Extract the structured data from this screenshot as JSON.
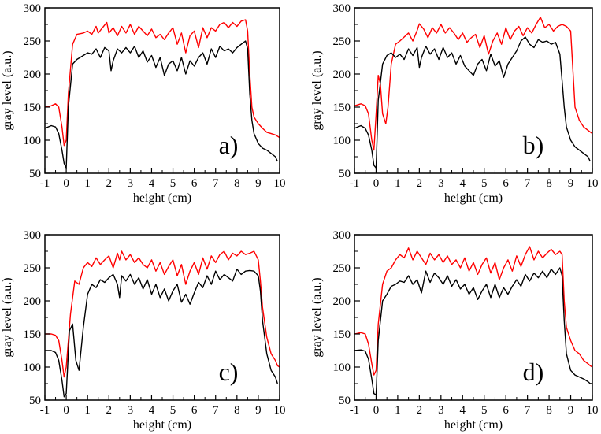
{
  "figure": {
    "colors": {
      "series_red": "#ff0000",
      "series_black": "#000000",
      "axis": "#000000"
    }
  },
  "chart_data": [
    {
      "type": "line",
      "panel_label": "a)",
      "xlabel": "height (cm)",
      "ylabel": "gray level (a.u.)",
      "xlim": [
        -1,
        10
      ],
      "ylim": [
        50,
        300
      ],
      "xticks": [
        "-1",
        "0",
        "1",
        "2",
        "3",
        "4",
        "5",
        "6",
        "7",
        "8",
        "9",
        "10"
      ],
      "yticks": [
        "50",
        "100",
        "150",
        "200",
        "250",
        "300"
      ],
      "series": [
        {
          "name": "red",
          "color": "#ff0000",
          "x": [
            -1,
            -0.7,
            -0.5,
            -0.35,
            -0.2,
            -0.1,
            0.0,
            0.1,
            0.3,
            0.5,
            0.8,
            1.0,
            1.2,
            1.4,
            1.5,
            1.7,
            1.9,
            2.0,
            2.2,
            2.4,
            2.6,
            2.8,
            3.0,
            3.2,
            3.4,
            3.6,
            3.8,
            4.0,
            4.2,
            4.4,
            4.6,
            4.8,
            5.0,
            5.2,
            5.4,
            5.6,
            5.8,
            6.0,
            6.2,
            6.4,
            6.6,
            6.8,
            7.0,
            7.2,
            7.4,
            7.6,
            7.8,
            8.0,
            8.2,
            8.4,
            8.5,
            8.6,
            8.7,
            8.8,
            9.0,
            9.2,
            9.4,
            9.6,
            9.8,
            10.0
          ],
          "y": [
            150,
            152,
            155,
            150,
            120,
            92,
            100,
            170,
            245,
            260,
            262,
            265,
            260,
            272,
            262,
            270,
            278,
            262,
            270,
            258,
            272,
            262,
            275,
            260,
            272,
            265,
            258,
            268,
            255,
            260,
            252,
            262,
            270,
            245,
            262,
            232,
            258,
            265,
            240,
            270,
            255,
            270,
            265,
            275,
            278,
            270,
            278,
            272,
            280,
            282,
            265,
            200,
            150,
            135,
            125,
            118,
            112,
            110,
            108,
            104
          ]
        },
        {
          "name": "black",
          "color": "#000000",
          "x": [
            -1,
            -0.7,
            -0.5,
            -0.35,
            -0.2,
            -0.1,
            0.0,
            0.1,
            0.3,
            0.5,
            0.8,
            1.0,
            1.2,
            1.4,
            1.6,
            1.8,
            2.0,
            2.1,
            2.2,
            2.4,
            2.6,
            2.8,
            3.0,
            3.2,
            3.4,
            3.6,
            3.8,
            4.0,
            4.2,
            4.4,
            4.6,
            4.8,
            5.0,
            5.2,
            5.4,
            5.6,
            5.8,
            6.0,
            6.2,
            6.4,
            6.6,
            6.8,
            7.0,
            7.2,
            7.4,
            7.6,
            7.8,
            8.0,
            8.2,
            8.4,
            8.5,
            8.6,
            8.7,
            8.8,
            9.0,
            9.2,
            9.4,
            9.6,
            9.8,
            9.9
          ],
          "y": [
            118,
            122,
            120,
            110,
            85,
            65,
            58,
            150,
            215,
            222,
            228,
            232,
            230,
            238,
            225,
            240,
            235,
            205,
            220,
            238,
            232,
            240,
            232,
            242,
            225,
            235,
            218,
            228,
            210,
            225,
            198,
            215,
            220,
            205,
            225,
            200,
            220,
            212,
            225,
            232,
            215,
            238,
            225,
            242,
            235,
            238,
            232,
            240,
            245,
            250,
            238,
            170,
            130,
            110,
            95,
            88,
            85,
            80,
            75,
            68
          ]
        }
      ]
    },
    {
      "type": "line",
      "panel_label": "b)",
      "xlabel": "height (cm)",
      "ylabel": "gray level (a.u.)",
      "xlim": [
        -1,
        10
      ],
      "ylim": [
        50,
        300
      ],
      "xticks": [
        "-1",
        "0",
        "1",
        "2",
        "3",
        "4",
        "5",
        "6",
        "7",
        "8",
        "9",
        "10"
      ],
      "yticks": [
        "50",
        "100",
        "150",
        "200",
        "250",
        "300"
      ],
      "series": [
        {
          "name": "red",
          "color": "#ff0000",
          "x": [
            -1,
            -0.7,
            -0.5,
            -0.35,
            -0.2,
            -0.1,
            0.0,
            0.1,
            0.2,
            0.3,
            0.45,
            0.55,
            0.7,
            0.9,
            1.1,
            1.3,
            1.5,
            1.7,
            1.9,
            2.0,
            2.2,
            2.4,
            2.6,
            2.8,
            3.0,
            3.2,
            3.4,
            3.6,
            3.8,
            4.0,
            4.2,
            4.4,
            4.6,
            4.8,
            5.0,
            5.2,
            5.4,
            5.6,
            5.8,
            6.0,
            6.2,
            6.4,
            6.6,
            6.8,
            7.0,
            7.2,
            7.4,
            7.6,
            7.8,
            8.0,
            8.2,
            8.4,
            8.6,
            8.8,
            9.0,
            9.2,
            9.4,
            9.6,
            9.8,
            10.0
          ],
          "y": [
            152,
            155,
            152,
            140,
            100,
            85,
            140,
            198,
            185,
            140,
            125,
            150,
            215,
            245,
            250,
            256,
            262,
            250,
            266,
            276,
            268,
            255,
            270,
            262,
            275,
            262,
            270,
            262,
            252,
            262,
            248,
            255,
            260,
            240,
            258,
            230,
            250,
            262,
            245,
            270,
            252,
            265,
            272,
            258,
            270,
            262,
            275,
            286,
            270,
            275,
            265,
            272,
            275,
            272,
            265,
            150,
            130,
            120,
            115,
            110
          ]
        },
        {
          "name": "black",
          "color": "#000000",
          "x": [
            -1,
            -0.7,
            -0.5,
            -0.35,
            -0.2,
            -0.1,
            0.0,
            0.1,
            0.3,
            0.5,
            0.7,
            0.9,
            1.1,
            1.3,
            1.5,
            1.7,
            1.9,
            2.0,
            2.1,
            2.3,
            2.5,
            2.7,
            2.9,
            3.1,
            3.3,
            3.5,
            3.7,
            3.9,
            4.1,
            4.3,
            4.5,
            4.7,
            4.9,
            5.1,
            5.3,
            5.5,
            5.7,
            5.9,
            6.1,
            6.3,
            6.5,
            6.7,
            6.9,
            7.1,
            7.3,
            7.5,
            7.7,
            7.9,
            8.1,
            8.3,
            8.5,
            8.6,
            8.7,
            8.8,
            9.0,
            9.2,
            9.4,
            9.6,
            9.8,
            9.9
          ],
          "y": [
            118,
            122,
            118,
            108,
            85,
            62,
            58,
            160,
            215,
            228,
            232,
            225,
            230,
            222,
            238,
            228,
            240,
            210,
            225,
            242,
            230,
            238,
            222,
            240,
            225,
            232,
            215,
            228,
            212,
            205,
            198,
            215,
            222,
            205,
            230,
            212,
            220,
            195,
            215,
            225,
            235,
            250,
            256,
            245,
            240,
            252,
            248,
            250,
            245,
            248,
            230,
            190,
            150,
            120,
            100,
            90,
            85,
            80,
            75,
            68
          ]
        }
      ]
    },
    {
      "type": "line",
      "panel_label": "c)",
      "xlabel": "height (cm)",
      "ylabel": "gray level (a.u.)",
      "xlim": [
        -1,
        10
      ],
      "ylim": [
        50,
        300
      ],
      "xticks": [
        "-1",
        "0",
        "1",
        "2",
        "3",
        "4",
        "5",
        "6",
        "7",
        "8",
        "9",
        "10"
      ],
      "yticks": [
        "50",
        "100",
        "150",
        "200",
        "250",
        "300"
      ],
      "series": [
        {
          "name": "red",
          "color": "#ff0000",
          "x": [
            -1,
            -0.7,
            -0.5,
            -0.35,
            -0.2,
            -0.1,
            0.0,
            0.2,
            0.4,
            0.6,
            0.8,
            1.0,
            1.2,
            1.4,
            1.6,
            1.8,
            2.0,
            2.2,
            2.4,
            2.5,
            2.6,
            2.8,
            3.0,
            3.2,
            3.4,
            3.6,
            3.8,
            4.0,
            4.2,
            4.4,
            4.6,
            4.8,
            5.0,
            5.2,
            5.4,
            5.6,
            5.8,
            6.0,
            6.2,
            6.4,
            6.6,
            6.8,
            7.0,
            7.2,
            7.4,
            7.6,
            7.8,
            8.0,
            8.2,
            8.4,
            8.6,
            8.8,
            9.0,
            9.1,
            9.2,
            9.4,
            9.6,
            9.8,
            9.9,
            10.0
          ],
          "y": [
            150,
            150,
            148,
            140,
            110,
            85,
            100,
            180,
            230,
            225,
            250,
            258,
            252,
            265,
            255,
            262,
            268,
            250,
            272,
            262,
            275,
            262,
            270,
            258,
            265,
            255,
            250,
            262,
            245,
            258,
            240,
            252,
            262,
            238,
            255,
            225,
            245,
            258,
            240,
            265,
            248,
            268,
            258,
            270,
            275,
            262,
            272,
            268,
            275,
            270,
            272,
            275,
            262,
            230,
            190,
            145,
            120,
            110,
            102,
            100
          ]
        },
        {
          "name": "black",
          "color": "#000000",
          "x": [
            -1,
            -0.7,
            -0.5,
            -0.35,
            -0.2,
            -0.1,
            0.0,
            0.15,
            0.3,
            0.45,
            0.6,
            0.8,
            1.0,
            1.2,
            1.4,
            1.6,
            1.8,
            2.0,
            2.2,
            2.4,
            2.5,
            2.6,
            2.8,
            3.0,
            3.2,
            3.4,
            3.6,
            3.8,
            4.0,
            4.2,
            4.4,
            4.6,
            4.8,
            5.0,
            5.2,
            5.4,
            5.6,
            5.8,
            6.0,
            6.2,
            6.4,
            6.6,
            6.8,
            7.0,
            7.2,
            7.4,
            7.6,
            7.8,
            8.0,
            8.2,
            8.4,
            8.6,
            8.8,
            9.0,
            9.1,
            9.2,
            9.4,
            9.6,
            9.8,
            9.9
          ],
          "y": [
            125,
            125,
            122,
            110,
            80,
            55,
            60,
            155,
            165,
            110,
            95,
            160,
            210,
            225,
            220,
            232,
            228,
            235,
            240,
            225,
            205,
            238,
            230,
            240,
            225,
            235,
            218,
            232,
            210,
            225,
            205,
            218,
            200,
            215,
            225,
            198,
            210,
            195,
            212,
            228,
            220,
            238,
            225,
            245,
            232,
            240,
            235,
            230,
            248,
            240,
            245,
            246,
            245,
            238,
            215,
            170,
            120,
            95,
            85,
            75
          ]
        }
      ]
    },
    {
      "type": "line",
      "panel_label": "d)",
      "xlabel": "height (cm)",
      "ylabel": "gray level (a.u.)",
      "xlim": [
        -1,
        10
      ],
      "ylim": [
        50,
        300
      ],
      "xticks": [
        "-1",
        "0",
        "1",
        "2",
        "3",
        "4",
        "5",
        "6",
        "7",
        "8",
        "9",
        "10"
      ],
      "yticks": [
        "50",
        "100",
        "150",
        "200",
        "250",
        "300"
      ],
      "series": [
        {
          "name": "red",
          "color": "#ff0000",
          "x": [
            -1,
            -0.7,
            -0.5,
            -0.35,
            -0.2,
            -0.1,
            0.0,
            0.1,
            0.3,
            0.5,
            0.7,
            0.9,
            1.1,
            1.3,
            1.5,
            1.7,
            1.9,
            2.1,
            2.3,
            2.5,
            2.7,
            2.9,
            3.1,
            3.3,
            3.5,
            3.7,
            3.9,
            4.1,
            4.3,
            4.5,
            4.7,
            4.9,
            5.1,
            5.3,
            5.5,
            5.7,
            5.9,
            6.1,
            6.3,
            6.5,
            6.7,
            6.9,
            7.1,
            7.3,
            7.5,
            7.7,
            7.9,
            8.1,
            8.3,
            8.5,
            8.6,
            8.7,
            8.8,
            9.0,
            9.2,
            9.4,
            9.6,
            9.8,
            9.9,
            10.0
          ],
          "y": [
            150,
            152,
            150,
            135,
            105,
            88,
            95,
            165,
            225,
            245,
            250,
            262,
            270,
            265,
            280,
            262,
            275,
            265,
            255,
            272,
            262,
            270,
            258,
            268,
            255,
            262,
            250,
            265,
            245,
            258,
            240,
            255,
            265,
            242,
            258,
            232,
            250,
            262,
            245,
            268,
            252,
            270,
            282,
            262,
            275,
            265,
            272,
            278,
            270,
            275,
            270,
            200,
            160,
            140,
            125,
            120,
            110,
            105,
            102,
            100
          ]
        },
        {
          "name": "black",
          "color": "#000000",
          "x": [
            -1,
            -0.7,
            -0.5,
            -0.35,
            -0.2,
            -0.1,
            0.0,
            0.1,
            0.3,
            0.5,
            0.7,
            0.9,
            1.1,
            1.3,
            1.5,
            1.7,
            1.9,
            2.1,
            2.3,
            2.5,
            2.7,
            2.9,
            3.1,
            3.3,
            3.5,
            3.7,
            3.9,
            4.1,
            4.3,
            4.5,
            4.7,
            4.9,
            5.1,
            5.3,
            5.5,
            5.7,
            5.9,
            6.1,
            6.3,
            6.5,
            6.7,
            6.9,
            7.1,
            7.3,
            7.5,
            7.7,
            7.9,
            8.1,
            8.3,
            8.5,
            8.6,
            8.7,
            8.8,
            9.0,
            9.2,
            9.4,
            9.6,
            9.8,
            9.9,
            10.0
          ],
          "y": [
            125,
            126,
            124,
            112,
            82,
            60,
            58,
            140,
            200,
            210,
            222,
            225,
            230,
            228,
            238,
            225,
            232,
            212,
            245,
            228,
            242,
            235,
            225,
            238,
            222,
            232,
            218,
            225,
            210,
            220,
            202,
            215,
            225,
            205,
            225,
            205,
            220,
            210,
            222,
            232,
            222,
            240,
            230,
            242,
            235,
            245,
            235,
            248,
            240,
            250,
            238,
            170,
            120,
            95,
            88,
            85,
            82,
            78,
            75,
            75
          ]
        }
      ]
    }
  ]
}
